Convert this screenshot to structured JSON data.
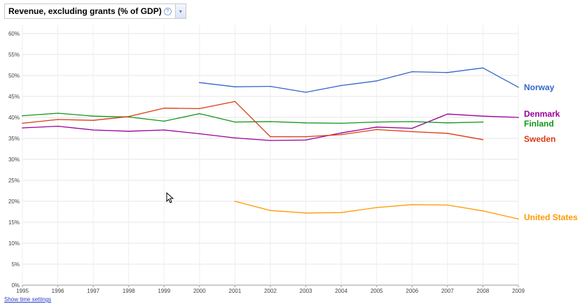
{
  "header": {
    "title": "Revenue, excluding grants (% of GDP)",
    "help_icon": "?",
    "dropdown_icon": "▾"
  },
  "footer": {
    "time_settings_label": "Show time settings"
  },
  "chart_data": {
    "type": "line",
    "title": "Revenue, excluding grants (% of GDP)",
    "xlabel": "",
    "ylabel": "",
    "x": [
      1995,
      1996,
      1997,
      1998,
      1999,
      2000,
      2001,
      2002,
      2003,
      2004,
      2005,
      2006,
      2007,
      2008,
      2009
    ],
    "x_ticks": [
      "1995",
      "1996",
      "1997",
      "1998",
      "1999",
      "2000",
      "2001",
      "2002",
      "2003",
      "2004",
      "2005",
      "2006",
      "2007",
      "2008",
      "2009"
    ],
    "xlim": [
      1995,
      2009
    ],
    "y_ticks": [
      "0%",
      "5%",
      "10%",
      "15%",
      "20%",
      "25%",
      "30%",
      "35%",
      "40%",
      "45%",
      "50%",
      "55%",
      "60%"
    ],
    "ylim": [
      0,
      62
    ],
    "grid": true,
    "legend": "right, labels at line ends",
    "series": [
      {
        "name": "Norway",
        "color": "#3366cc",
        "values": [
          null,
          null,
          null,
          null,
          null,
          48.3,
          47.3,
          47.4,
          46.0,
          47.6,
          48.7,
          50.9,
          50.7,
          51.8,
          47.2
        ]
      },
      {
        "name": "Denmark",
        "color": "#990099",
        "values": [
          37.5,
          37.9,
          37.0,
          36.7,
          37.0,
          36.1,
          35.1,
          34.5,
          34.6,
          36.3,
          37.7,
          37.4,
          40.8,
          40.3,
          40.0
        ]
      },
      {
        "name": "Finland",
        "color": "#109618",
        "values": [
          40.4,
          41.0,
          40.3,
          40.1,
          39.1,
          40.9,
          38.9,
          39.0,
          38.7,
          38.6,
          38.9,
          39.0,
          38.7,
          38.9,
          null
        ]
      },
      {
        "name": "Sweden",
        "color": "#dc3912",
        "values": [
          38.6,
          39.5,
          39.3,
          40.2,
          42.2,
          42.1,
          43.8,
          35.4,
          35.4,
          35.9,
          37.1,
          36.6,
          36.2,
          34.7,
          null
        ]
      },
      {
        "name": "United States",
        "color": "#ff9900",
        "values": [
          null,
          null,
          null,
          null,
          null,
          null,
          20.0,
          17.8,
          17.2,
          17.3,
          18.5,
          19.2,
          19.1,
          17.7,
          15.8
        ]
      }
    ]
  }
}
